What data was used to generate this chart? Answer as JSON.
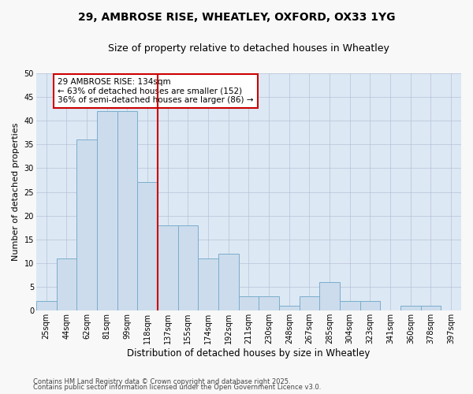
{
  "title_line1": "29, AMBROSE RISE, WHEATLEY, OXFORD, OX33 1YG",
  "title_line2": "Size of property relative to detached houses in Wheatley",
  "xlabel": "Distribution of detached houses by size in Wheatley",
  "ylabel": "Number of detached properties",
  "bar_labels": [
    "25sqm",
    "44sqm",
    "62sqm",
    "81sqm",
    "99sqm",
    "118sqm",
    "137sqm",
    "155sqm",
    "174sqm",
    "192sqm",
    "211sqm",
    "230sqm",
    "248sqm",
    "267sqm",
    "285sqm",
    "304sqm",
    "323sqm",
    "341sqm",
    "360sqm",
    "378sqm",
    "397sqm"
  ],
  "bar_values": [
    2,
    11,
    36,
    42,
    42,
    27,
    18,
    18,
    11,
    12,
    3,
    3,
    1,
    3,
    6,
    2,
    2,
    0,
    1,
    1,
    0
  ],
  "bar_color": "#ccdcec",
  "bar_edge_color": "#7aadcc",
  "vline_x": 6.0,
  "vline_color": "#cc0000",
  "annotation_text": "29 AMBROSE RISE: 134sqm\n← 63% of detached houses are smaller (152)\n36% of semi-detached houses are larger (86) →",
  "annotation_box_facecolor": "#ffffff",
  "annotation_box_edgecolor": "#cc0000",
  "ylim": [
    0,
    50
  ],
  "yticks": [
    0,
    5,
    10,
    15,
    20,
    25,
    30,
    35,
    40,
    45,
    50
  ],
  "grid_color": "#b0b8d0",
  "plot_bg_color": "#dce8f4",
  "fig_bg_color": "#f8f8f8",
  "footer_line1": "Contains HM Land Registry data © Crown copyright and database right 2025.",
  "footer_line2": "Contains public sector information licensed under the Open Government Licence v3.0.",
  "title1_fontsize": 10,
  "title2_fontsize": 9,
  "xlabel_fontsize": 8.5,
  "ylabel_fontsize": 8,
  "tick_fontsize": 7,
  "annot_fontsize": 7.5,
  "footer_fontsize": 6
}
